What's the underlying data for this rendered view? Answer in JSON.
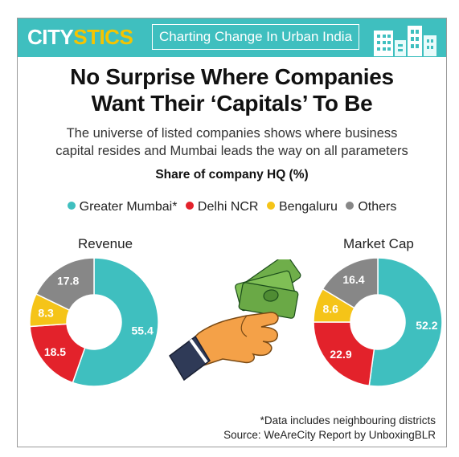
{
  "banner": {
    "brand_part1": "CITY",
    "brand_part2": "STICS",
    "tagline": "Charting Change In Urban India"
  },
  "headline": {
    "line1": "No Surprise Where Companies",
    "line2": "Want Their ‘Capitals’ To Be"
  },
  "subtitle": {
    "line1": "The universe of listed companies shows where business",
    "line2": "capital resides and Mumbai leads the way on all parameters"
  },
  "share_title": "Share of company HQ (%)",
  "colors": {
    "Greater Mumbai*": "#3fbfbf",
    "Delhi NCR": "#e3222b",
    "Bengaluru": "#f5c418",
    "Others": "#878787"
  },
  "chart_data": [
    {
      "type": "pie",
      "title": "Revenue",
      "categories": [
        "Greater Mumbai*",
        "Delhi NCR",
        "Bengaluru",
        "Others"
      ],
      "values": [
        55.4,
        18.5,
        8.3,
        17.8
      ]
    },
    {
      "type": "pie",
      "title": "Market Cap",
      "categories": [
        "Greater Mumbai*",
        "Delhi NCR",
        "Bengaluru",
        "Others"
      ],
      "values": [
        52.2,
        22.9,
        8.6,
        16.4
      ]
    }
  ],
  "footnote": {
    "line1": "*Data includes neighbouring districts",
    "line2": "Source: WeAreCity Report by UnboxingBLR"
  }
}
